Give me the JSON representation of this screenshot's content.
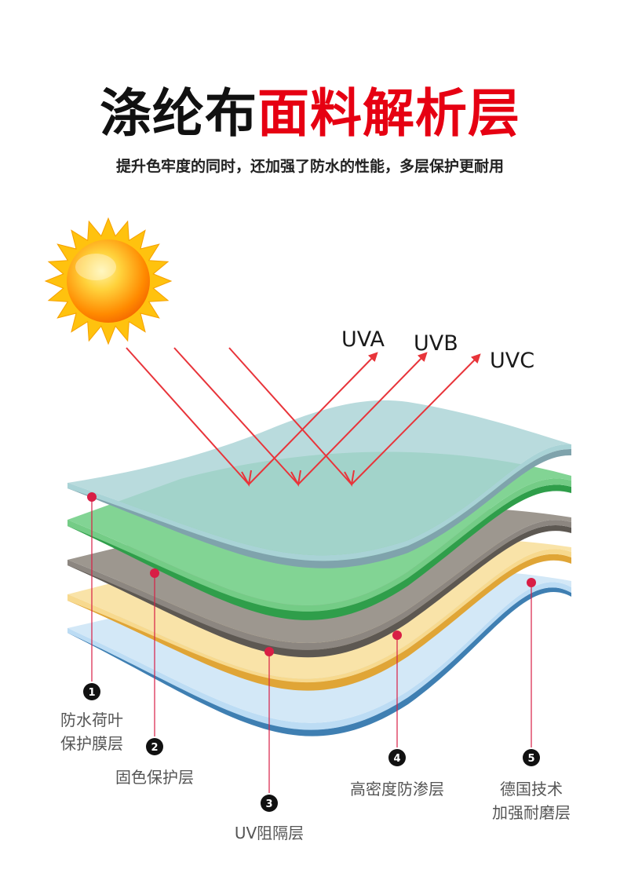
{
  "title": {
    "part_black": "涤纶布",
    "part_red": "面料解析层"
  },
  "subtitle": "提升色牢度的同时，还加强了防水的性能，多层保护更耐用",
  "rays": [
    {
      "label": "UVA"
    },
    {
      "label": "UVB"
    },
    {
      "label": "UVC"
    }
  ],
  "layers": [
    {
      "number": "1",
      "line1": "防水荷叶",
      "line2": "保护膜层",
      "color": "#a9d3d6"
    },
    {
      "number": "2",
      "line1": "固色保护层",
      "line2": "",
      "color": "#74cc86"
    },
    {
      "number": "3",
      "line1": "UV阻隔层",
      "line2": "",
      "color": "#8c8680"
    },
    {
      "number": "4",
      "line1": "高密度防渗层",
      "line2": "",
      "color": "#f7d98e"
    },
    {
      "number": "5",
      "line1": "德国技术",
      "line2": "加强耐磨层",
      "color": "#bcdcf4"
    }
  ],
  "colors": {
    "accent_red": "#e60012",
    "ray_red": "#e8343a",
    "dot": "#d81e45"
  },
  "icons": {
    "sun": "sun-icon"
  }
}
